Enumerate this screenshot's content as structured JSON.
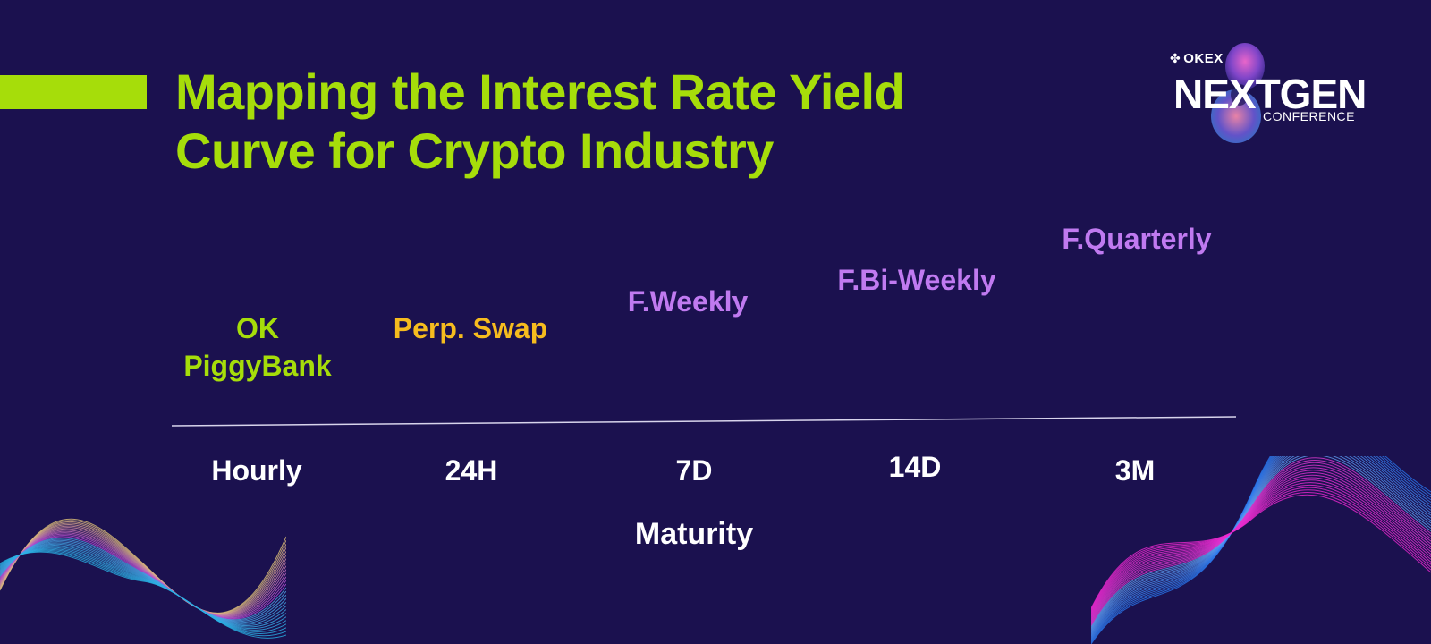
{
  "slide": {
    "title_line1": "Mapping the Interest Rate Yield",
    "title_line2": "Curve for Crypto Industry",
    "axis_title": "Maturity",
    "colors": {
      "background": "#1b114f",
      "accent_green": "#a6dd0a",
      "swap_yellow": "#f6bc1e",
      "futures_purple": "#c07af0",
      "text_white": "#ffffff"
    }
  },
  "logo": {
    "brand": "OKEX",
    "event_name": "NEXTGEN",
    "event_sub": "CONFERENCE"
  },
  "products": [
    {
      "line1": "OK",
      "line2": "PiggyBank",
      "maturity": "Hourly"
    },
    {
      "line1": "Perp. Swap",
      "line2": "",
      "maturity": "24H"
    },
    {
      "line1": "F.Weekly",
      "line2": "",
      "maturity": "7D"
    },
    {
      "line1": "F.Bi-Weekly",
      "line2": "",
      "maturity": "14D"
    },
    {
      "line1": "F.Quarterly",
      "line2": "",
      "maturity": "3M"
    }
  ]
}
